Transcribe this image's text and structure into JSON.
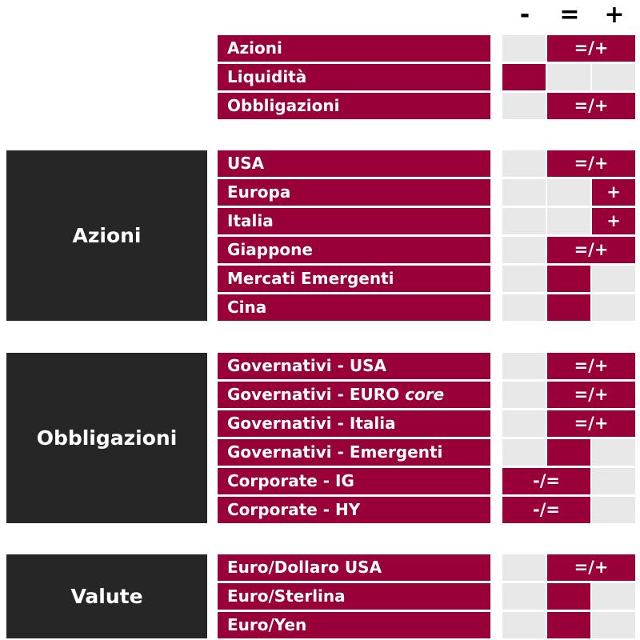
{
  "header": {
    "minus": "-",
    "equal": "=",
    "plus": "+"
  },
  "colors": {
    "accent": "#99003a",
    "group_bg": "#262626",
    "empty_cell": "#e8e8e8"
  },
  "top_rows": [
    {
      "label": "Azioni",
      "rating": "=/+"
    },
    {
      "label": "Liquidità",
      "rating": "-"
    },
    {
      "label": "Obbligazioni",
      "rating": "=/+"
    }
  ],
  "groups": [
    {
      "name": "Azioni",
      "rows": [
        {
          "label": "USA",
          "rating": "=/+"
        },
        {
          "label": "Europa",
          "rating": "+"
        },
        {
          "label": "Italia",
          "rating": "+"
        },
        {
          "label": "Giappone",
          "rating": "=/+"
        },
        {
          "label": "Mercati Emergenti",
          "rating": "="
        },
        {
          "label": "Cina",
          "rating": "="
        }
      ]
    },
    {
      "name": "Obbligazioni",
      "rows": [
        {
          "label": "Governativi - USA",
          "rating": "=/+"
        },
        {
          "label": "Governativi - EURO",
          "label_italic": "core",
          "rating": "=/+"
        },
        {
          "label": "Governativi - Italia",
          "rating": "=/+"
        },
        {
          "label": "Governativi - Emergenti",
          "rating": "="
        },
        {
          "label": "Corporate - IG",
          "rating": "-/="
        },
        {
          "label": "Corporate - HY",
          "rating": "-/="
        }
      ]
    },
    {
      "name": "Valute",
      "rows": [
        {
          "label": "Euro/Dollaro USA",
          "rating": "=/+"
        },
        {
          "label": "Euro/Sterlina",
          "rating": "="
        },
        {
          "label": "Euro/Yen",
          "rating": "="
        }
      ]
    }
  ]
}
